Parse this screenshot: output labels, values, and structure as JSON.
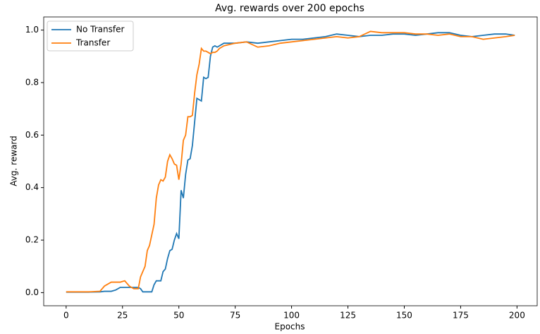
{
  "chart_data": {
    "type": "line",
    "title": "Avg. rewards over 200 epochs",
    "x_label": "Epochs",
    "y_label": "Avg. reward",
    "x": [
      0,
      5,
      10,
      15,
      17,
      20,
      22,
      24,
      26,
      28,
      30,
      32,
      33,
      34,
      35,
      36,
      37,
      38,
      39,
      40,
      41,
      42,
      43,
      44,
      45,
      46,
      47,
      48,
      49,
      50,
      51,
      52,
      53,
      54,
      55,
      56,
      57,
      58,
      59,
      60,
      61,
      62,
      63,
      64,
      65,
      66,
      67,
      68,
      69,
      70,
      75,
      80,
      85,
      90,
      95,
      100,
      105,
      110,
      115,
      120,
      125,
      130,
      135,
      140,
      145,
      150,
      155,
      160,
      165,
      170,
      175,
      180,
      185,
      190,
      195,
      199
    ],
    "series": [
      {
        "name": "No Transfer",
        "color": "#1f77b4",
        "values": [
          0.002,
          0.002,
          0.002,
          0.003,
          0.005,
          0.005,
          0.01,
          0.02,
          0.02,
          0.02,
          0.02,
          0.02,
          0.015,
          0.003,
          0.003,
          0.003,
          0.003,
          0.003,
          0.03,
          0.045,
          0.045,
          0.045,
          0.08,
          0.09,
          0.13,
          0.16,
          0.165,
          0.2,
          0.225,
          0.205,
          0.39,
          0.36,
          0.45,
          0.505,
          0.51,
          0.56,
          0.65,
          0.74,
          0.735,
          0.73,
          0.82,
          0.815,
          0.82,
          0.9,
          0.935,
          0.94,
          0.935,
          0.94,
          0.945,
          0.95,
          0.95,
          0.955,
          0.95,
          0.955,
          0.96,
          0.965,
          0.965,
          0.97,
          0.975,
          0.985,
          0.98,
          0.975,
          0.98,
          0.98,
          0.985,
          0.985,
          0.98,
          0.985,
          0.99,
          0.99,
          0.98,
          0.975,
          0.98,
          0.985,
          0.985,
          0.98
        ]
      },
      {
        "name": "Transfer",
        "color": "#ff7f0e",
        "values": [
          0.003,
          0.003,
          0.003,
          0.005,
          0.025,
          0.04,
          0.04,
          0.04,
          0.045,
          0.025,
          0.015,
          0.015,
          0.06,
          0.08,
          0.1,
          0.16,
          0.18,
          0.22,
          0.26,
          0.36,
          0.41,
          0.43,
          0.425,
          0.44,
          0.5,
          0.525,
          0.51,
          0.49,
          0.485,
          0.43,
          0.49,
          0.58,
          0.6,
          0.67,
          0.67,
          0.675,
          0.76,
          0.83,
          0.87,
          0.93,
          0.92,
          0.92,
          0.915,
          0.91,
          0.915,
          0.915,
          0.92,
          0.93,
          0.935,
          0.94,
          0.95,
          0.955,
          0.935,
          0.94,
          0.95,
          0.955,
          0.96,
          0.965,
          0.97,
          0.975,
          0.97,
          0.975,
          0.995,
          0.99,
          0.99,
          0.99,
          0.985,
          0.985,
          0.98,
          0.985,
          0.975,
          0.975,
          0.965,
          0.97,
          0.975,
          0.98
        ]
      }
    ],
    "xlim": [
      -9.95,
      208.95
    ],
    "ylim": [
      -0.05,
      1.05
    ],
    "xticks": [
      0,
      25,
      50,
      75,
      100,
      125,
      150,
      175,
      200
    ],
    "yticks": [
      {
        "value": 0,
        "label": "0.0"
      },
      0.2,
      0.4,
      0.6,
      0.8,
      {
        "value": 1,
        "label": "1.0"
      }
    ],
    "legend": "upper left"
  }
}
